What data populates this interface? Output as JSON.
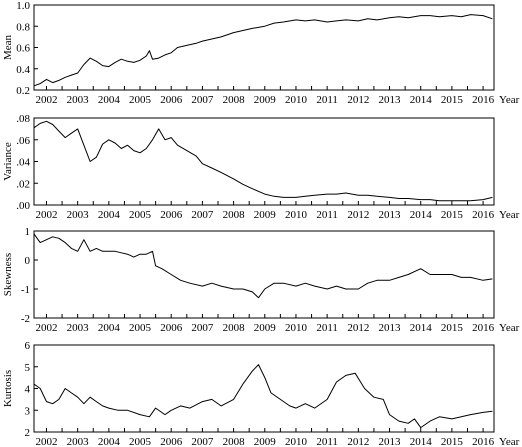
{
  "chart_data": [
    {
      "type": "line",
      "ylabel": "Mean",
      "xlabel": "Year",
      "xlim": [
        2001.6,
        2016.35
      ],
      "ylim": [
        0.2,
        1.0
      ],
      "yticks": [
        "0.2",
        "0.4",
        "0.6",
        "0.8",
        "1.0"
      ],
      "ytick_values": [
        0.2,
        0.4,
        0.6,
        0.8,
        1.0
      ],
      "xticks": [
        "2002",
        "2003",
        "2004",
        "2005",
        "2006",
        "2007",
        "2008",
        "2009",
        "2010",
        "2011",
        "2012",
        "2013",
        "2014",
        "2015",
        "2016"
      ],
      "series": [
        {
          "x": [
            2001.6,
            2001.8,
            2002.0,
            2002.2,
            2002.4,
            2002.6,
            2002.8,
            2003.0,
            2003.2,
            2003.4,
            2003.6,
            2003.8,
            2004.0,
            2004.2,
            2004.4,
            2004.6,
            2004.8,
            2005.0,
            2005.2,
            2005.3,
            2005.4,
            2005.6,
            2005.8,
            2006.0,
            2006.2,
            2006.5,
            2006.8,
            2007.0,
            2007.3,
            2007.6,
            2008.0,
            2008.3,
            2008.6,
            2009.0,
            2009.3,
            2009.6,
            2010.0,
            2010.3,
            2010.6,
            2011.0,
            2011.3,
            2011.6,
            2012.0,
            2012.3,
            2012.6,
            2013.0,
            2013.3,
            2013.6,
            2014.0,
            2014.3,
            2014.6,
            2015.0,
            2015.3,
            2015.6,
            2016.0,
            2016.3
          ],
          "y": [
            0.24,
            0.26,
            0.3,
            0.27,
            0.29,
            0.32,
            0.34,
            0.36,
            0.44,
            0.5,
            0.47,
            0.43,
            0.42,
            0.46,
            0.49,
            0.47,
            0.46,
            0.48,
            0.52,
            0.57,
            0.49,
            0.5,
            0.53,
            0.55,
            0.6,
            0.62,
            0.64,
            0.66,
            0.68,
            0.7,
            0.74,
            0.76,
            0.78,
            0.8,
            0.83,
            0.84,
            0.86,
            0.85,
            0.86,
            0.84,
            0.85,
            0.86,
            0.85,
            0.87,
            0.86,
            0.88,
            0.89,
            0.88,
            0.9,
            0.9,
            0.89,
            0.9,
            0.89,
            0.91,
            0.9,
            0.87
          ]
        }
      ]
    },
    {
      "type": "line",
      "ylabel": "Variance",
      "xlabel": "Year",
      "xlim": [
        2001.6,
        2016.35
      ],
      "ylim": [
        0.0,
        0.08
      ],
      "yticks": [
        ".00",
        ".02",
        ".04",
        ".06",
        ".08"
      ],
      "ytick_values": [
        0.0,
        0.02,
        0.04,
        0.06,
        0.08
      ],
      "xticks": [
        "2002",
        "2003",
        "2004",
        "2005",
        "2006",
        "2007",
        "2008",
        "2009",
        "2010",
        "2011",
        "2012",
        "2013",
        "2014",
        "2015",
        "2016"
      ],
      "series": [
        {
          "x": [
            2001.6,
            2001.8,
            2002.0,
            2002.2,
            2002.4,
            2002.6,
            2002.8,
            2003.0,
            2003.2,
            2003.4,
            2003.6,
            2003.8,
            2004.0,
            2004.2,
            2004.4,
            2004.6,
            2004.8,
            2005.0,
            2005.2,
            2005.4,
            2005.6,
            2005.8,
            2006.0,
            2006.2,
            2006.5,
            2006.8,
            2007.0,
            2007.3,
            2007.6,
            2008.0,
            2008.3,
            2008.6,
            2009.0,
            2009.3,
            2009.6,
            2010.0,
            2010.3,
            2010.6,
            2011.0,
            2011.3,
            2011.6,
            2012.0,
            2012.3,
            2012.6,
            2013.0,
            2013.3,
            2013.6,
            2014.0,
            2014.3,
            2014.6,
            2015.0,
            2015.3,
            2015.6,
            2016.0,
            2016.3
          ],
          "y": [
            0.071,
            0.075,
            0.077,
            0.074,
            0.068,
            0.062,
            0.066,
            0.07,
            0.055,
            0.04,
            0.044,
            0.056,
            0.06,
            0.057,
            0.052,
            0.055,
            0.05,
            0.048,
            0.052,
            0.06,
            0.07,
            0.06,
            0.062,
            0.055,
            0.05,
            0.045,
            0.038,
            0.034,
            0.03,
            0.024,
            0.019,
            0.015,
            0.01,
            0.008,
            0.007,
            0.007,
            0.008,
            0.009,
            0.01,
            0.01,
            0.011,
            0.009,
            0.009,
            0.008,
            0.007,
            0.006,
            0.006,
            0.005,
            0.005,
            0.004,
            0.004,
            0.004,
            0.004,
            0.005,
            0.007
          ]
        }
      ]
    },
    {
      "type": "line",
      "ylabel": "Skewness",
      "xlabel": "Year",
      "xlim": [
        2001.6,
        2016.35
      ],
      "ylim": [
        -2,
        1
      ],
      "yticks": [
        "-2",
        "-1",
        "0",
        "1"
      ],
      "ytick_values": [
        -2,
        -1,
        0,
        1
      ],
      "xticks": [
        "2002",
        "2003",
        "2004",
        "2005",
        "2006",
        "2007",
        "2008",
        "2009",
        "2010",
        "2011",
        "2012",
        "2013",
        "2014",
        "2015",
        "2016"
      ],
      "series": [
        {
          "x": [
            2001.6,
            2001.8,
            2002.0,
            2002.2,
            2002.4,
            2002.6,
            2002.8,
            2003.0,
            2003.2,
            2003.4,
            2003.6,
            2003.8,
            2004.0,
            2004.2,
            2004.4,
            2004.6,
            2004.8,
            2005.0,
            2005.2,
            2005.4,
            2005.5,
            2005.7,
            2006.0,
            2006.3,
            2006.6,
            2007.0,
            2007.3,
            2007.6,
            2008.0,
            2008.3,
            2008.6,
            2008.8,
            2009.0,
            2009.3,
            2009.6,
            2010.0,
            2010.3,
            2010.6,
            2011.0,
            2011.3,
            2011.6,
            2012.0,
            2012.3,
            2012.6,
            2013.0,
            2013.3,
            2013.6,
            2014.0,
            2014.3,
            2014.6,
            2015.0,
            2015.3,
            2015.6,
            2016.0,
            2016.3
          ],
          "y": [
            0.9,
            0.6,
            0.7,
            0.8,
            0.75,
            0.6,
            0.4,
            0.3,
            0.7,
            0.3,
            0.4,
            0.3,
            0.3,
            0.3,
            0.25,
            0.2,
            0.1,
            0.2,
            0.2,
            0.3,
            -0.2,
            -0.3,
            -0.5,
            -0.7,
            -0.8,
            -0.9,
            -0.8,
            -0.9,
            -1.0,
            -1.0,
            -1.1,
            -1.3,
            -1.0,
            -0.8,
            -0.8,
            -0.9,
            -0.8,
            -0.9,
            -1.0,
            -0.9,
            -1.0,
            -1.0,
            -0.8,
            -0.7,
            -0.7,
            -0.6,
            -0.5,
            -0.3,
            -0.5,
            -0.5,
            -0.5,
            -0.6,
            -0.6,
            -0.7,
            -0.65
          ]
        }
      ]
    },
    {
      "type": "line",
      "ylabel": "Kurtosis",
      "xlabel": "Year",
      "xlim": [
        2001.6,
        2016.35
      ],
      "ylim": [
        2,
        6
      ],
      "yticks": [
        "2",
        "3",
        "4",
        "5",
        "6"
      ],
      "ytick_values": [
        2,
        3,
        4,
        5,
        6
      ],
      "xticks": [
        "2002",
        "2003",
        "2004",
        "2005",
        "2006",
        "2007",
        "2008",
        "2009",
        "2010",
        "2011",
        "2012",
        "2013",
        "2014",
        "2015",
        "2016"
      ],
      "series": [
        {
          "x": [
            2001.6,
            2001.8,
            2002.0,
            2002.2,
            2002.4,
            2002.6,
            2002.8,
            2003.0,
            2003.2,
            2003.4,
            2003.6,
            2003.8,
            2004.0,
            2004.3,
            2004.6,
            2005.0,
            2005.3,
            2005.5,
            2005.8,
            2006.0,
            2006.3,
            2006.6,
            2007.0,
            2007.3,
            2007.6,
            2008.0,
            2008.3,
            2008.6,
            2008.8,
            2009.0,
            2009.2,
            2009.5,
            2009.8,
            2010.0,
            2010.3,
            2010.6,
            2011.0,
            2011.3,
            2011.6,
            2011.9,
            2012.2,
            2012.5,
            2012.8,
            2013.0,
            2013.3,
            2013.6,
            2013.8,
            2014.0,
            2014.3,
            2014.6,
            2015.0,
            2015.3,
            2015.6,
            2016.0,
            2016.3
          ],
          "y": [
            4.2,
            4.0,
            3.4,
            3.3,
            3.5,
            4.0,
            3.8,
            3.6,
            3.3,
            3.6,
            3.4,
            3.2,
            3.1,
            3.0,
            3.0,
            2.8,
            2.7,
            3.1,
            2.8,
            3.0,
            3.2,
            3.1,
            3.4,
            3.5,
            3.2,
            3.5,
            4.2,
            4.8,
            5.1,
            4.5,
            3.8,
            3.5,
            3.2,
            3.1,
            3.3,
            3.1,
            3.5,
            4.3,
            4.6,
            4.7,
            4.0,
            3.6,
            3.5,
            2.8,
            2.5,
            2.4,
            2.6,
            2.2,
            2.5,
            2.7,
            2.6,
            2.7,
            2.8,
            2.9,
            2.95
          ]
        }
      ]
    }
  ]
}
